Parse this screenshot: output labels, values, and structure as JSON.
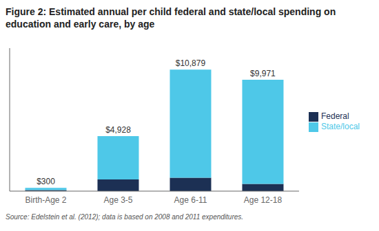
{
  "chart_data": {
    "type": "bar",
    "title": "Figure 2: Estimated annual per child federal and state/local spending on education and early care, by age",
    "categories": [
      "Birth-Age 2",
      "Age 3-5",
      "Age 6-11",
      "Age 12-18"
    ],
    "series": [
      {
        "name": "Federal",
        "color": "#1c3054",
        "values": [
          90,
          1050,
          1200,
          650
        ]
      },
      {
        "name": "State/local",
        "color": "#4ec8e8",
        "values": [
          210,
          3878,
          9679,
          9321
        ]
      }
    ],
    "stacked": true,
    "totals": [
      300,
      4928,
      10879,
      9971
    ],
    "total_labels": [
      "$300",
      "$4,928",
      "$10,879",
      "$9,971"
    ],
    "ylim": [
      0,
      12800
    ],
    "tick_labels": "x",
    "grid": false,
    "legend": "right",
    "annotations": [
      "Source: Edelstein et al. (2012); data is based on 2008 and 2011 expenditures."
    ]
  }
}
